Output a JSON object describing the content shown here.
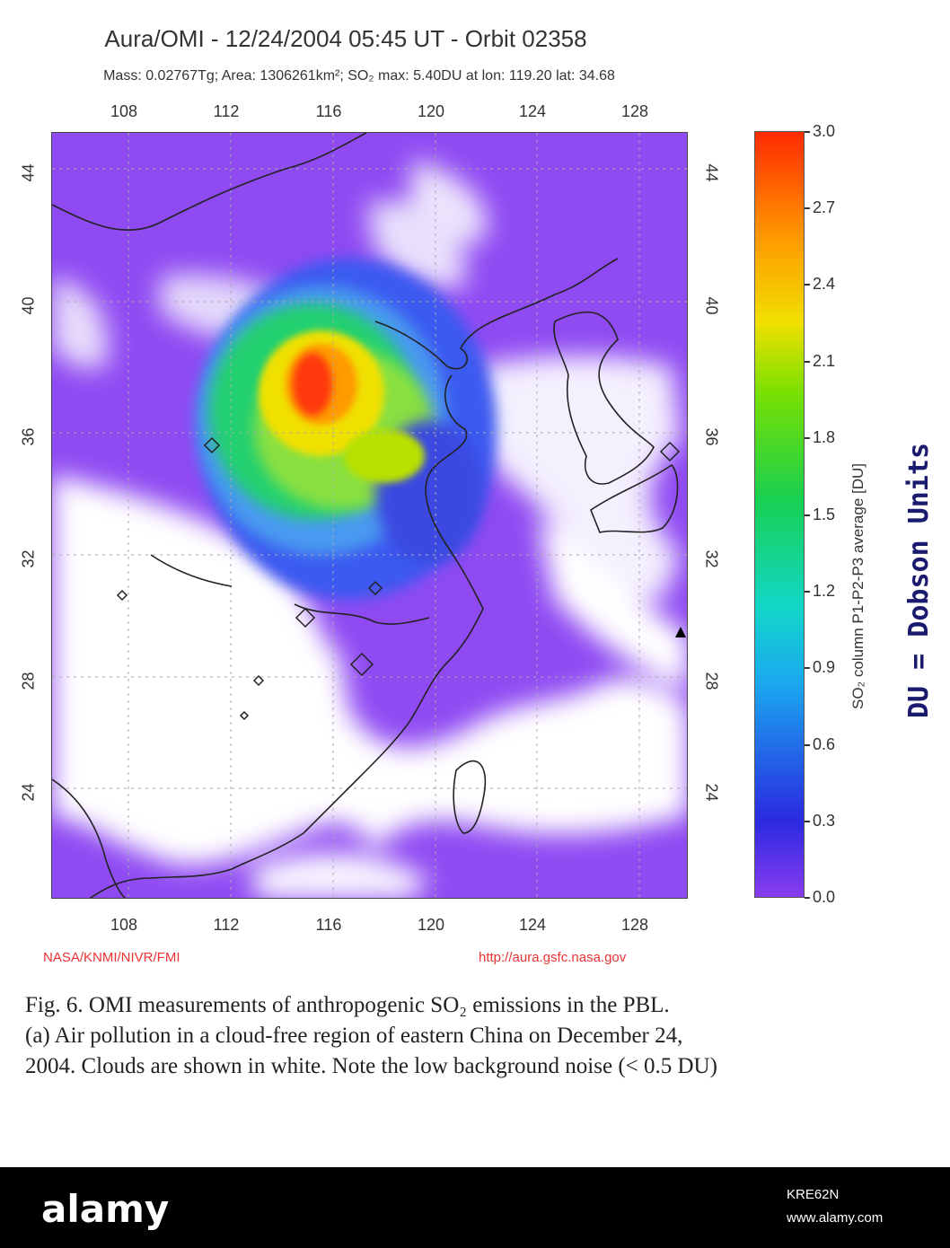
{
  "header": {
    "title": "Aura/OMI - 12/24/2004 05:45 UT - Orbit 02358",
    "subtitle": "Mass: 0.02767Tg; Area: 1306261km²; SO₂ max: 5.40DU at lon: 119.20 lat: 34.68"
  },
  "map": {
    "lon_ticks": [
      "108",
      "112",
      "116",
      "120",
      "124",
      "128"
    ],
    "lat_ticks": [
      "44",
      "40",
      "36",
      "32",
      "28",
      "24"
    ],
    "lon_range": [
      105.5,
      130.5
    ],
    "lat_range": [
      20.5,
      45.5
    ],
    "colors": {
      "background": "#8f4af2",
      "cloud": "#ffffff",
      "plume_low": "#3a5af0",
      "plume_mid": "#22d070",
      "plume_high": "#f0e000",
      "plume_peak": "#ff3a10",
      "coast": "#222222"
    }
  },
  "colorbar": {
    "labels": [
      "3.0",
      "2.7",
      "2.4",
      "2.1",
      "1.8",
      "1.5",
      "1.2",
      "0.9",
      "0.6",
      "0.3",
      "0.0"
    ],
    "title": "SO₂ column P1-P2-P3 average [DU]",
    "range": [
      0.0,
      3.0
    ]
  },
  "note": "DU = Dobson Units",
  "credits": {
    "left": "NASA/KNMI/NIVR/FMI",
    "right": "http://aura.gsfc.nasa.gov"
  },
  "caption": {
    "line1": "Fig. 6.  OMI measurements of anthropogenic SO₂ emissions in the PBL.",
    "line2": "(a) Air pollution in a cloud-free region of eastern China on December 24,",
    "line3": "2004. Clouds are shown in white. Note the low background noise (< 0.5 DU)"
  },
  "footer": {
    "logo": "alamy",
    "image_id": "KRE62N",
    "url": "www.alamy.com"
  }
}
